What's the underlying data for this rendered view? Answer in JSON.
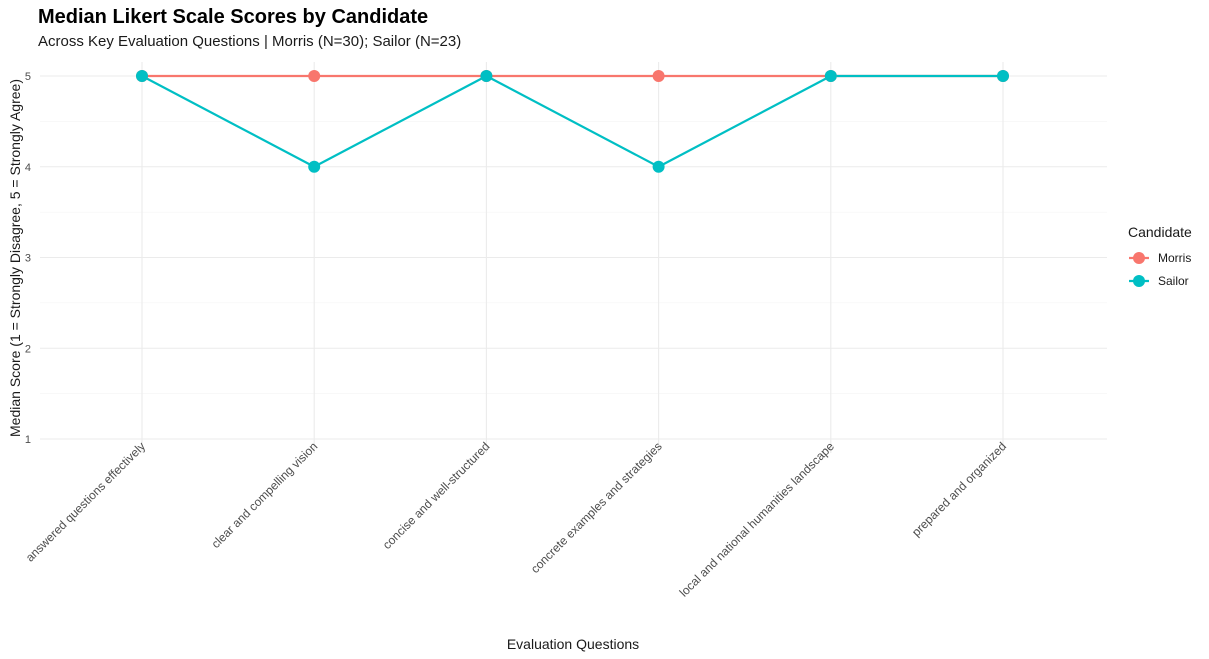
{
  "chart_data": {
    "type": "line",
    "title": "Median Likert Scale Scores by Candidate",
    "subtitle": "Across Key Evaluation Questions | Morris (N=30); Sailor (N=23)",
    "xlabel": "Evaluation Questions",
    "ylabel": "Median Score (1 = Strongly Disagree, 5 = Strongly Agree)",
    "categories": [
      "answered questions effectively",
      "clear and compelling vision",
      "concise and well-structured",
      "concrete examples and strategies",
      "local and national humanities landscape",
      "prepared and organized"
    ],
    "yticks": [
      "1",
      "2",
      "3",
      "4",
      "5"
    ],
    "ylim": [
      1,
      5
    ],
    "grid": true,
    "legend": {
      "title": "Candidate",
      "position": "right"
    },
    "series": [
      {
        "name": "Morris",
        "color": "#F8766D",
        "values": [
          5,
          5,
          5,
          5,
          5,
          5
        ]
      },
      {
        "name": "Sailor",
        "color": "#00BFC4",
        "values": [
          5,
          4,
          5,
          4,
          5,
          5
        ]
      }
    ]
  }
}
